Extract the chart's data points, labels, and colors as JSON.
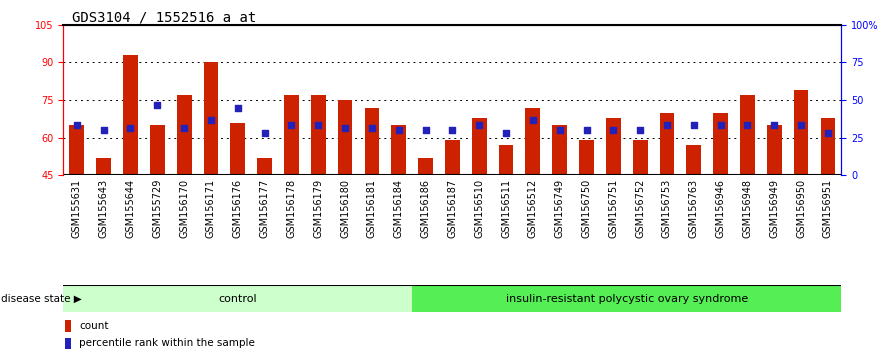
{
  "title": "GDS3104 / 1552516_a_at",
  "samples": [
    "GSM155631",
    "GSM155643",
    "GSM155644",
    "GSM155729",
    "GSM156170",
    "GSM156171",
    "GSM156176",
    "GSM156177",
    "GSM156178",
    "GSM156179",
    "GSM156180",
    "GSM156181",
    "GSM156184",
    "GSM156186",
    "GSM156187",
    "GSM156510",
    "GSM156511",
    "GSM156512",
    "GSM156749",
    "GSM156750",
    "GSM156751",
    "GSM156752",
    "GSM156753",
    "GSM156763",
    "GSM156946",
    "GSM156948",
    "GSM156949",
    "GSM156950",
    "GSM156951"
  ],
  "bar_values": [
    65,
    52,
    93,
    65,
    77,
    90,
    66,
    52,
    77,
    77,
    75,
    72,
    65,
    52,
    59,
    68,
    57,
    72,
    65,
    59,
    68,
    59,
    70,
    57,
    70,
    77,
    65,
    79,
    68
  ],
  "dot_values": [
    65,
    63,
    64,
    73,
    64,
    67,
    72,
    62,
    65,
    65,
    64,
    64,
    63,
    63,
    63,
    65,
    62,
    67,
    63,
    63,
    63,
    63,
    65,
    65,
    65,
    65,
    65,
    65,
    62
  ],
  "control_count": 13,
  "disease_count": 16,
  "bar_color": "#cc2200",
  "dot_color": "#2222bb",
  "control_bg": "#ccffcc",
  "disease_bg": "#55ee55",
  "xtick_bg": "#cccccc",
  "xtick_sep": "#ffffff",
  "ylim_left": [
    45,
    105
  ],
  "ylim_right": [
    0,
    100
  ],
  "yticks_left": [
    45,
    60,
    75,
    90,
    105
  ],
  "yticks_right": [
    0,
    25,
    50,
    75,
    100
  ],
  "ytick_right_labels": [
    "0",
    "25",
    "50",
    "75",
    "100%"
  ],
  "grid_values": [
    60,
    75,
    90
  ],
  "xlabel_disease_state": "disease state",
  "label_control": "control",
  "label_disease": "insulin-resistant polycystic ovary syndrome",
  "legend_count": "count",
  "legend_percentile": "percentile rank within the sample",
  "title_fontsize": 10,
  "tick_fontsize": 7,
  "label_fontsize": 8,
  "bg_color": "#ffffff"
}
